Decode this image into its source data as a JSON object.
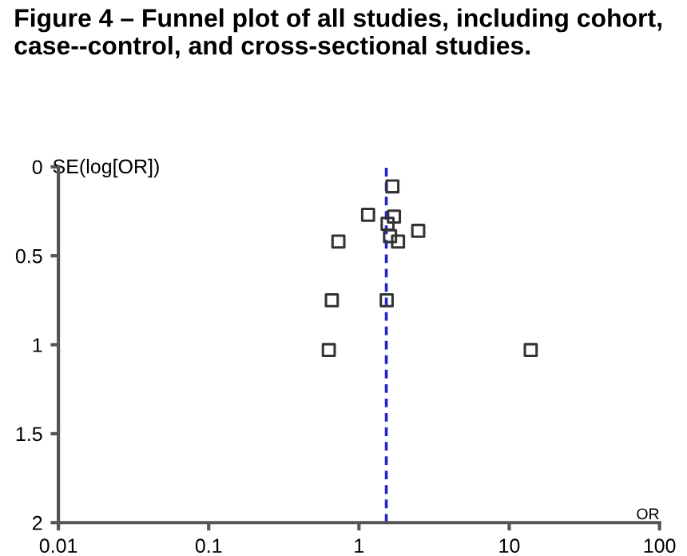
{
  "chart_data": {
    "type": "scatter",
    "title": "Figure 4 – Funnel plot of all studies, including cohort, case--control, and cross-sectional studies.",
    "xlabel": "OR",
    "ylabel": "SE(log[OR])",
    "x": [
      1.67,
      1.15,
      1.71,
      1.55,
      2.48,
      0.73,
      1.61,
      1.82,
      0.66,
      1.53,
      0.63,
      13.9
    ],
    "values": [
      0.11,
      0.27,
      0.28,
      0.32,
      0.36,
      0.42,
      0.39,
      0.42,
      0.75,
      0.75,
      1.03,
      1.03
    ],
    "color": "#333333",
    "marker": "square",
    "log": "x",
    "xlim": [
      0.01,
      100
    ],
    "xticks": [
      0.01,
      0.1,
      1,
      10,
      100
    ],
    "ylim": [
      2,
      0
    ],
    "yticks": [
      0,
      0.5,
      1,
      1.5,
      2
    ],
    "ref_lines": [
      {
        "axis": "x",
        "value": 1.52,
        "color": "#2222cc",
        "line_style": "dashed"
      }
    ],
    "grid": false,
    "legend": false
  }
}
